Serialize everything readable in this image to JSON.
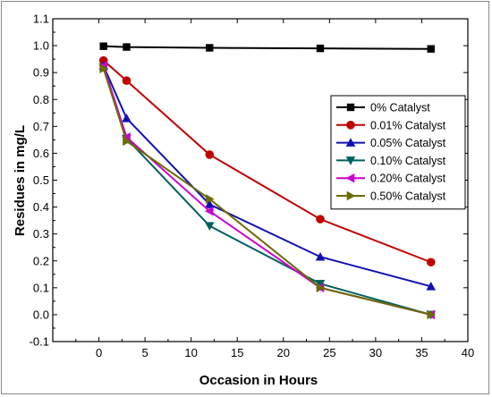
{
  "chart_data": {
    "type": "line",
    "xlabel": "Occasion in Hours",
    "ylabel": "Residues in mg/L",
    "xlim": [
      -5,
      40
    ],
    "ylim": [
      -0.1,
      1.1
    ],
    "xticks": [
      0,
      5,
      10,
      15,
      20,
      25,
      30,
      35,
      40
    ],
    "yticks": [
      -0.1,
      0.0,
      0.1,
      0.2,
      0.3,
      0.4,
      0.5,
      0.6,
      0.7,
      0.8,
      0.9,
      1.0,
      1.1
    ],
    "xtick_labels": [
      "0",
      "5",
      "10",
      "15",
      "20",
      "25",
      "30",
      "35",
      "40"
    ],
    "ytick_labels": [
      "-0.1",
      "0.0",
      "0.1",
      "0.2",
      "0.3",
      "0.4",
      "0.5",
      "0.6",
      "0.7",
      "0.8",
      "0.9",
      "1.0",
      "1.1"
    ],
    "legend_position": "right",
    "grid": false,
    "x": [
      0.5,
      3,
      12,
      24,
      36
    ],
    "series": [
      {
        "name": "0% Catalyst",
        "color": "#000000",
        "marker": "square",
        "values": [
          0.998,
          0.995,
          0.992,
          0.99,
          0.988
        ]
      },
      {
        "name": "0.01% Catalyst",
        "color": "#c00000",
        "marker": "circle",
        "values": [
          0.945,
          0.87,
          0.595,
          0.355,
          0.195
        ]
      },
      {
        "name": "0.05% Catalyst",
        "color": "#1010b0",
        "marker": "triangle-up",
        "values": [
          0.925,
          0.73,
          0.41,
          0.215,
          0.105
        ]
      },
      {
        "name": "0.10% Catalyst",
        "color": "#006060",
        "marker": "triangle-down",
        "values": [
          0.92,
          0.655,
          0.33,
          0.115,
          0.0
        ]
      },
      {
        "name": "0.20% Catalyst",
        "color": "#cc00cc",
        "marker": "triangle-left",
        "values": [
          0.925,
          0.66,
          0.385,
          0.1,
          0.0
        ]
      },
      {
        "name": "0.50% Catalyst",
        "color": "#6b6b00",
        "marker": "triangle-right",
        "values": [
          0.915,
          0.645,
          0.43,
          0.1,
          0.0
        ]
      }
    ]
  }
}
